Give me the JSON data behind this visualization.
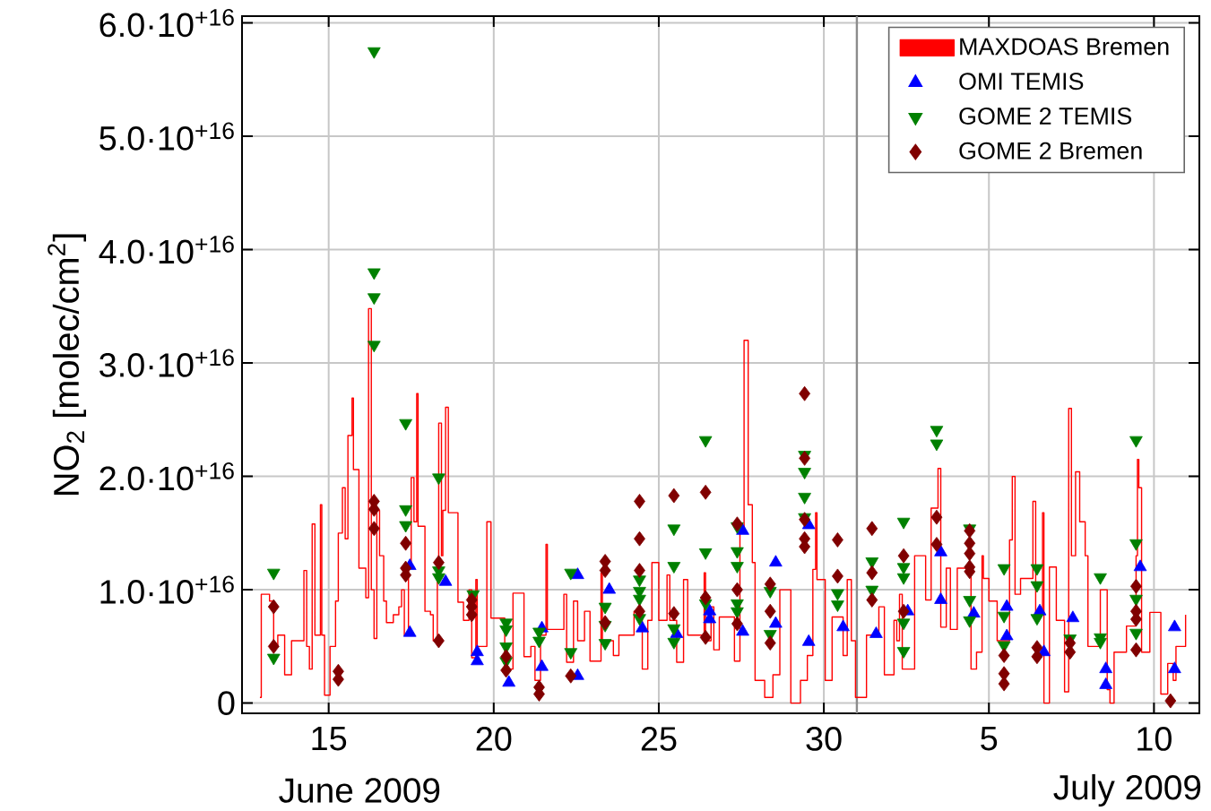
{
  "chart_data": {
    "type": "scatter",
    "ylabel": "NO$_{2}$ [molec/cm$^{2}$]",
    "xlim": [
      "2009-06-12T09:00",
      "2009-07-11T09:00"
    ],
    "ylim": [
      -900000000000000.0,
      6.06e+16
    ],
    "xticks": [
      {
        "value": "2009-06-15",
        "label": "15"
      },
      {
        "value": "2009-06-20",
        "label": "20"
      },
      {
        "value": "2009-06-25",
        "label": "25"
      },
      {
        "value": "2009-06-30",
        "label": "30"
      },
      {
        "value": "2009-07-05",
        "label": "5"
      },
      {
        "value": "2009-07-10",
        "label": "10"
      }
    ],
    "yticks": [
      {
        "value": 0,
        "label": "0"
      },
      {
        "value": 1e+16,
        "label": "1.0·10$^{+16}$"
      },
      {
        "value": 2e+16,
        "label": "2.0·10$^{+16}$"
      },
      {
        "value": 3e+16,
        "label": "3.0·10$^{+16}$"
      },
      {
        "value": 4e+16,
        "label": "4.0·10$^{+16}$"
      },
      {
        "value": 5e+16,
        "label": "5.0·10$^{+16}$"
      },
      {
        "value": 6e+16,
        "label": "6.0·10$^{+16}$"
      }
    ],
    "grid": true,
    "legend": "top right",
    "ref_lines": [
      {
        "axis": "x",
        "value": "2009-07-01",
        "color": "#8c8c8c"
      }
    ],
    "annotations": [
      "June 2009",
      "July 2009"
    ],
    "series": [
      {
        "name": "MAXDOAS Bremen",
        "type": "step",
        "color": "#ff0000",
        "x": [
          "2009-06-12T22:00",
          "2009-06-12T23:00",
          "2009-06-13T05:00",
          "2009-06-13T08:00",
          "2009-06-13T11:00",
          "2009-06-13T16:00",
          "2009-06-13T21:00",
          "2009-06-14T06:00",
          "2009-06-14T08:00",
          "2009-06-14T10:00",
          "2009-06-14T12:00",
          "2009-06-14T14:00",
          "2009-06-14T18:00",
          "2009-06-14T19:00",
          "2009-06-14T21:00",
          "2009-06-15T01:00",
          "2009-06-15T05:00",
          "2009-06-15T07:00",
          "2009-06-15T10:00",
          "2009-06-15T12:00",
          "2009-06-15T14:00",
          "2009-06-15T17:00",
          "2009-06-15T18:00",
          "2009-06-15T22:00",
          "2009-06-16T03:00",
          "2009-06-16T05:00",
          "2009-06-16T07:00",
          "2009-06-16T09:00",
          "2009-06-16T11:00",
          "2009-06-16T13:00",
          "2009-06-16T16:00",
          "2009-06-16T18:00",
          "2009-06-16T23:00",
          "2009-06-17T03:00",
          "2009-06-17T05:00",
          "2009-06-17T07:00",
          "2009-06-17T10:00",
          "2009-06-17T12:00",
          "2009-06-17T14:00",
          "2009-06-17T16:00",
          "2009-06-17T17:00",
          "2009-06-17T22:00",
          "2009-06-18T02:00",
          "2009-06-18T04:00",
          "2009-06-18T07:00",
          "2009-06-18T08:00",
          "2009-06-18T10:00",
          "2009-06-18T11:00",
          "2009-06-18T13:00",
          "2009-06-18T15:00",
          "2009-06-18T22:00",
          "2009-06-19T02:00",
          "2009-06-19T06:00",
          "2009-06-19T08:00",
          "2009-06-19T11:00",
          "2009-06-19T12:00",
          "2009-06-19T19:00",
          "2009-06-19T22:00",
          "2009-06-20T08:00",
          "2009-06-20T10:00",
          "2009-06-20T14:00",
          "2009-06-20T22:00",
          "2009-06-21T03:00",
          "2009-06-21T06:00",
          "2009-06-21T10:00",
          "2009-06-21T14:00",
          "2009-06-21T15:00",
          "2009-06-22T03:00",
          "2009-06-22T05:00",
          "2009-06-22T10:00",
          "2009-06-22T13:00",
          "2009-06-22T18:00",
          "2009-06-22T22:00",
          "2009-06-23T06:00",
          "2009-06-23T07:00",
          "2009-06-23T15:00",
          "2009-06-23T19:00",
          "2009-06-24T06:00",
          "2009-06-24T12:00",
          "2009-06-24T16:00",
          "2009-06-24T19:00",
          "2009-06-25T00:00",
          "2009-06-25T06:00",
          "2009-06-25T08:00",
          "2009-06-25T13:00",
          "2009-06-25T18:00",
          "2009-06-25T21:00",
          "2009-06-26T09:00",
          "2009-06-26T10:00",
          "2009-06-26T14:00",
          "2009-06-26T16:00",
          "2009-06-26T20:00",
          "2009-06-27T07:00",
          "2009-06-27T11:00",
          "2009-06-27T14:00",
          "2009-06-27T17:00",
          "2009-06-27T20:00",
          "2009-06-27T22:00",
          "2009-06-28T05:00",
          "2009-06-28T11:00",
          "2009-06-28T16:00",
          "2009-06-29T00:00",
          "2009-06-29T07:00",
          "2009-06-29T12:00",
          "2009-06-29T16:00",
          "2009-06-29T18:00",
          "2009-06-29T19:00",
          "2009-06-30T01:00",
          "2009-06-30T06:00",
          "2009-06-30T14:00",
          "2009-06-30T17:00",
          "2009-06-30T20:00",
          "2009-06-30T23:00",
          "2009-07-01T07:00",
          "2009-07-01T16:00",
          "2009-07-01T20:00",
          "2009-07-02T03:00",
          "2009-07-02T05:00",
          "2009-07-02T07:00",
          "2009-07-02T09:00",
          "2009-07-02T18:00",
          "2009-07-03T02:00",
          "2009-07-03T06:00",
          "2009-07-03T11:00",
          "2009-07-03T13:00",
          "2009-07-03T17:00",
          "2009-07-03T20:00",
          "2009-07-04T01:00",
          "2009-07-04T11:00",
          "2009-07-04T15:00",
          "2009-07-04T19:00",
          "2009-07-04T20:00",
          "2009-07-05T00:00",
          "2009-07-05T06:00",
          "2009-07-05T15:00",
          "2009-07-05T17:00",
          "2009-07-05T19:00",
          "2009-07-05T23:00",
          "2009-07-06T08:00",
          "2009-07-06T10:00",
          "2009-07-06T15:00",
          "2009-07-06T16:00",
          "2009-07-06T20:00",
          "2009-07-07T01:00",
          "2009-07-07T07:00",
          "2009-07-07T10:00",
          "2009-07-07T12:00",
          "2009-07-07T15:00",
          "2009-07-07T18:00",
          "2009-07-07T22:00",
          "2009-07-08T00:00",
          "2009-07-08T09:00",
          "2009-07-08T14:00",
          "2009-07-08T16:00",
          "2009-07-08T19:00",
          "2009-07-09T04:00",
          "2009-07-09T11:00",
          "2009-07-09T12:00",
          "2009-07-09T13:00",
          "2009-07-09T15:00",
          "2009-07-09T21:00",
          "2009-07-10T05:00",
          "2009-07-10T10:00",
          "2009-07-10T14:00",
          "2009-07-10T16:00",
          "2009-07-10T23:00"
        ],
        "values": [
          500000000000000.0,
          9600000000000000.0,
          9000000000000000.0,
          5000000000000000.0,
          6000000000000000.0,
          2500000000000000.0,
          5500000000000000.0,
          1.17e+16,
          5000000000000000.0,
          3000000000000000.0,
          1.58e+16,
          6000000000000000.0,
          1.75e+16,
          6000000000000000.0,
          700000000000000.0,
          5000000000000000.0,
          9000000000000000.0,
          1.5e+16,
          1.9e+16,
          1.45e+16,
          2.36e+16,
          2.69e+16,
          2.06e+16,
          1.19e+16,
          9300000000000000.0,
          3.48e+16,
          1e+16,
          5700000000000000.0,
          1.7e+16,
          1.3e+16,
          9000000000000000.0,
          7100000000000000.0,
          7800000000000000.0,
          8500000000000000.0,
          1e+16,
          6000000000000000.0,
          1.2e+16,
          1.99e+16,
          1.6e+16,
          2.73e+16,
          1.56e+16,
          8100000000000000.0,
          7800000000000000.0,
          5500000000000000.0,
          1.2e+16,
          2.47e+16,
          1.3e+16,
          1.7e+16,
          2.61e+16,
          1.68e+16,
          8900000000000000.0,
          7300000000000000.0,
          1e+16,
          4000000000000000.0,
          1.09e+16,
          5000000000000000.0,
          1.6e+16,
          7500000000000000.0,
          4500000000000000.0,
          3000000000000000.0,
          9700000000000000.0,
          4100000000000000.0,
          5000000000000000.0,
          2000000000000000.0,
          6000000000000000.0,
          1.4e+16,
          6500000000000000.0,
          9600000000000000.0,
          3600000000000000.0,
          9000000000000000.0,
          5500000000000000.0,
          8100000000000000.0,
          3700000000000000.0,
          1.15e+16,
          5500000000000000.0,
          4200000000000000.0,
          6000000000000000.0,
          8100000000000000.0,
          3000000000000000.0,
          7300000000000000.0,
          1.24e+16,
          7300000000000000.0,
          1.13e+16,
          7300000000000000.0,
          3600000000000000.0,
          1.09e+16,
          6000000000000000.0,
          1.15e+16,
          5500000000000000.0,
          8500000000000000.0,
          4700000000000000.0,
          7600000000000000.0,
          3700000000000000.0,
          1.5e+16,
          3.2e+16,
          1.75e+16,
          1.24e+16,
          2000000000000000.0,
          500000000000000.0,
          2500000000000000.0,
          1e+16,
          0.0,
          2000000000000000.0,
          4200000000000000.0,
          1.18e+16,
          1.68e+16,
          1.09e+16,
          2000000000000000.0,
          7600000000000000.0,
          4200000000000000.0,
          1.09e+16,
          5500000000000000.0,
          500000000000000.0,
          6000000000000000.0,
          8500000000000000.0,
          2500000000000000.0,
          7300000000000000.0,
          5500000000000000.0,
          9600000000000000.0,
          3000000000000000.0,
          1.3e+16,
          9100000000000000.0,
          1.72e+16,
          2.07e+16,
          6700000000000000.0,
          1.19e+16,
          6500000000000000.0,
          1.19e+16,
          3000000000000000.0,
          4500000000000000.0,
          1.3e+16,
          1.1e+16,
          9000000000000000.0,
          5500000000000000.0,
          1.44e+16,
          2e+16,
          9600000000000000.0,
          1.1e+16,
          1.78e+16,
          8000000000000000.0,
          1.68e+16,
          0.0,
          1.2e+16,
          7300000000000000.0,
          1000000000000000.0,
          2.6e+16,
          1.3e+16,
          2.04e+16,
          1.6e+16,
          1.3e+16,
          5000000000000000.0,
          1e+16,
          1200000000000000.0,
          0.0,
          4500000000000000.0,
          6800000000000000.0,
          1.3e+16,
          2.15e+16,
          1.9e+16,
          4500000000000000.0,
          8000000000000000.0,
          800000000000000.0,
          3500000000000000.0,
          2000000000000000.0,
          5000000000000000.0,
          7800000000000000.0
        ]
      },
      {
        "name": "OMI TEMIS",
        "marker": "triangle",
        "color": "#0000ff",
        "x": [
          "2009-06-17T11:00",
          "2009-06-17T11:00",
          "2009-06-18T13:00",
          "2009-06-19T12:00",
          "2009-06-19T12:00",
          "2009-06-20T11:00",
          "2009-06-21T11:00",
          "2009-06-21T11:00",
          "2009-06-22T13:00",
          "2009-06-22T13:00",
          "2009-06-23T12:00",
          "2009-06-24T12:00",
          "2009-06-25T13:00",
          "2009-06-26T13:00",
          "2009-06-26T13:00",
          "2009-06-27T13:00",
          "2009-06-27T13:00",
          "2009-06-28T13:00",
          "2009-06-28T13:00",
          "2009-06-29T13:00",
          "2009-06-29T13:00",
          "2009-06-30T14:00",
          "2009-07-01T14:00",
          "2009-07-02T13:00",
          "2009-07-03T13:00",
          "2009-07-03T13:00",
          "2009-07-04T13:00",
          "2009-07-05T13:00",
          "2009-07-05T13:00",
          "2009-07-06T13:00",
          "2009-07-06T16:00",
          "2009-07-07T13:00",
          "2009-07-08T13:00",
          "2009-07-08T13:00",
          "2009-07-09T14:00",
          "2009-07-10T15:00",
          "2009-07-10T15:00"
        ],
        "values": [
          1.21e+16,
          6200000000000000.0,
          1.07e+16,
          4500000000000000.0,
          3700000000000000.0,
          1800000000000000.0,
          3200000000000000.0,
          6600000000000000.0,
          1.13e+16,
          2400000000000000.0,
          1e+16,
          6600000000000000.0,
          6100000000000000.0,
          8100000000000000.0,
          7400000000000000.0,
          1.52e+16,
          6300000000000000.0,
          1.24e+16,
          7000000000000000.0,
          1.57e+16,
          5400000000000000.0,
          6700000000000000.0,
          6100000000000000.0,
          8100000000000000.0,
          1.33e+16,
          9100000000000000.0,
          7900000000000000.0,
          8500000000000000.0,
          5900000000000000.0,
          8100000000000000.0,
          4500000000000000.0,
          7500000000000000.0,
          3000000000000000.0,
          1600000000000000.0,
          1.2e+16,
          6700000000000000.0,
          3000000000000000.0
        ]
      },
      {
        "name": "GOME 2 TEMIS",
        "marker": "triangle down",
        "color": "#008000",
        "x": [
          "2009-06-13T08:00",
          "2009-06-13T08:00",
          "2009-06-16T09:00",
          "2009-06-16T09:00",
          "2009-06-16T09:00",
          "2009-06-16T09:00",
          "2009-06-17T08:00",
          "2009-06-17T08:00",
          "2009-06-17T08:00",
          "2009-06-18T08:00",
          "2009-06-18T08:00",
          "2009-06-18T08:00",
          "2009-06-19T09:00",
          "2009-06-20T09:00",
          "2009-06-20T09:00",
          "2009-06-20T09:00",
          "2009-06-20T09:00",
          "2009-06-21T09:00",
          "2009-06-21T09:00",
          "2009-06-22T08:00",
          "2009-06-22T08:00",
          "2009-06-23T09:00",
          "2009-06-23T09:00",
          "2009-06-23T09:00",
          "2009-06-24T10:00",
          "2009-06-24T10:00",
          "2009-06-24T10:00",
          "2009-06-24T10:00",
          "2009-06-25T11:00",
          "2009-06-25T11:00",
          "2009-06-25T11:00",
          "2009-06-25T11:00",
          "2009-06-26T10:00",
          "2009-06-26T10:00",
          "2009-06-26T10:00",
          "2009-06-27T09:00",
          "2009-06-27T09:00",
          "2009-06-27T09:00",
          "2009-06-27T09:00",
          "2009-06-27T09:00",
          "2009-06-28T09:00",
          "2009-06-28T09:00",
          "2009-06-29T10:00",
          "2009-06-29T10:00",
          "2009-06-29T10:00",
          "2009-06-29T10:00",
          "2009-06-30T10:00",
          "2009-06-30T10:00",
          "2009-07-01T11:00",
          "2009-07-01T11:00",
          "2009-07-02T10:00",
          "2009-07-02T10:00",
          "2009-07-02T10:00",
          "2009-07-02T10:00",
          "2009-07-02T10:00",
          "2009-07-03T10:00",
          "2009-07-03T10:00",
          "2009-07-04T10:00",
          "2009-07-04T10:00",
          "2009-07-04T10:00",
          "2009-07-05T11:00",
          "2009-07-05T11:00",
          "2009-07-05T11:00",
          "2009-07-06T11:00",
          "2009-07-06T11:00",
          "2009-07-06T11:00",
          "2009-07-07T11:00",
          "2009-07-08T09:00",
          "2009-07-08T09:00",
          "2009-07-08T09:00",
          "2009-07-09T11:00",
          "2009-07-09T11:00",
          "2009-07-09T11:00",
          "2009-07-09T11:00"
        ],
        "values": [
          1.15e+16,
          4000000000000000.0,
          5.75e+16,
          3.8e+16,
          3.58e+16,
          3.16e+16,
          2.47e+16,
          1.71e+16,
          1.57e+16,
          1.99e+16,
          1.17e+16,
          1.11e+16,
          9600000000000000.0,
          7100000000000000.0,
          6500000000000000.0,
          5000000000000000.0,
          3700000000000000.0,
          6300000000000000.0,
          5500000000000000.0,
          1.15e+16,
          4500000000000000.0,
          8500000000000000.0,
          6900000000000000.0,
          5300000000000000.0,
          1.09e+16,
          9900000000000000.0,
          9200000000000000.0,
          7500000000000000.0,
          1.54e+16,
          1.21e+16,
          6600000000000000.0,
          5400000000000000.0,
          2.32e+16,
          1.33e+16,
          8800000000000000.0,
          1.56e+16,
          1.34e+16,
          1.21e+16,
          8800000000000000.0,
          8100000000000000.0,
          9900000000000000.0,
          6100000000000000.0,
          2.19e+16,
          2.04e+16,
          1.82e+16,
          1.64e+16,
          9700000000000000.0,
          8700000000000000.0,
          1.25e+16,
          1e+16,
          1.6e+16,
          1.2e+16,
          1.11e+16,
          7100000000000000.0,
          4600000000000000.0,
          2.41e+16,
          2.29e+16,
          1.54e+16,
          9100000000000000.0,
          7300000000000000.0,
          1.19e+16,
          7700000000000000.0,
          5100000000000000.0,
          1.19e+16,
          1.04e+16,
          7500000000000000.0,
          5700000000000000.0,
          1.11e+16,
          5800000000000000.0,
          5400000000000000.0,
          2.32e+16,
          1.41e+16,
          9200000000000000.0,
          6200000000000000.0
        ]
      },
      {
        "name": "GOME 2 Bremen",
        "marker": "diamond",
        "color": "#800000",
        "x": [
          "2009-06-13T08:00",
          "2009-06-13T08:00",
          "2009-06-15T07:00",
          "2009-06-15T07:00",
          "2009-06-16T09:00",
          "2009-06-16T09:00",
          "2009-06-16T09:00",
          "2009-06-17T08:00",
          "2009-06-17T08:00",
          "2009-06-17T08:00",
          "2009-06-18T08:00",
          "2009-06-18T08:00",
          "2009-06-19T08:00",
          "2009-06-19T08:00",
          "2009-06-19T08:00",
          "2009-06-20T09:00",
          "2009-06-20T09:00",
          "2009-06-21T09:00",
          "2009-06-21T09:00",
          "2009-06-22T08:00",
          "2009-06-23T09:00",
          "2009-06-23T09:00",
          "2009-06-23T09:00",
          "2009-06-24T10:00",
          "2009-06-24T10:00",
          "2009-06-24T10:00",
          "2009-06-24T10:00",
          "2009-06-25T11:00",
          "2009-06-25T11:00",
          "2009-06-26T10:00",
          "2009-06-26T10:00",
          "2009-06-26T10:00",
          "2009-06-27T09:00",
          "2009-06-27T09:00",
          "2009-06-27T09:00",
          "2009-06-28T09:00",
          "2009-06-28T09:00",
          "2009-06-28T09:00",
          "2009-06-29T10:00",
          "2009-06-29T10:00",
          "2009-06-29T10:00",
          "2009-06-29T10:00",
          "2009-06-29T10:00",
          "2009-06-30T10:00",
          "2009-06-30T10:00",
          "2009-07-01T11:00",
          "2009-07-01T11:00",
          "2009-07-01T11:00",
          "2009-07-02T10:00",
          "2009-07-02T10:00",
          "2009-07-03T10:00",
          "2009-07-03T10:00",
          "2009-07-04T10:00",
          "2009-07-04T10:00",
          "2009-07-04T10:00",
          "2009-07-04T10:00",
          "2009-07-04T10:00",
          "2009-07-05T11:00",
          "2009-07-05T11:00",
          "2009-07-05T11:00",
          "2009-07-06T11:00",
          "2009-07-06T11:00",
          "2009-07-07T11:00",
          "2009-07-07T11:00",
          "2009-07-09T11:00",
          "2009-07-09T11:00",
          "2009-07-09T11:00",
          "2009-07-09T11:00",
          "2009-07-10T12:00"
        ],
        "values": [
          8500000000000000.0,
          5000000000000000.0,
          2800000000000000.0,
          2100000000000000.0,
          1.78e+16,
          1.71e+16,
          1.54e+16,
          1.41e+16,
          1.19e+16,
          1.13e+16,
          1.24e+16,
          5500000000000000.0,
          9100000000000000.0,
          8500000000000000.0,
          7800000000000000.0,
          4100000000000000.0,
          2900000000000000.0,
          1400000000000000.0,
          800000000000000.0,
          2400000000000000.0,
          1.25e+16,
          1.17e+16,
          7100000000000000.0,
          1.78e+16,
          1.45e+16,
          1.17e+16,
          8100000000000000.0,
          1.83e+16,
          7900000000000000.0,
          1.86e+16,
          9300000000000000.0,
          5800000000000000.0,
          1.58e+16,
          1e+16,
          7000000000000000.0,
          1.05e+16,
          8100000000000000.0,
          5300000000000000.0,
          2.73e+16,
          2.16e+16,
          1.62e+16,
          1.45e+16,
          1.38e+16,
          1.44e+16,
          1.12e+16,
          1.54e+16,
          1.15e+16,
          9100000000000000.0,
          1.3e+16,
          8100000000000000.0,
          1.64e+16,
          1.4e+16,
          1.52e+16,
          1.41e+16,
          1.32e+16,
          1.2e+16,
          1.16e+16,
          4200000000000000.0,
          2600000000000000.0,
          1700000000000000.0,
          4900000000000000.0,
          4100000000000000.0,
          5300000000000000.0,
          4500000000000000.0,
          1.03e+16,
          8100000000000000.0,
          7400000000000000.0,
          4700000000000000.0,
          200000000000000.0
        ]
      }
    ]
  }
}
